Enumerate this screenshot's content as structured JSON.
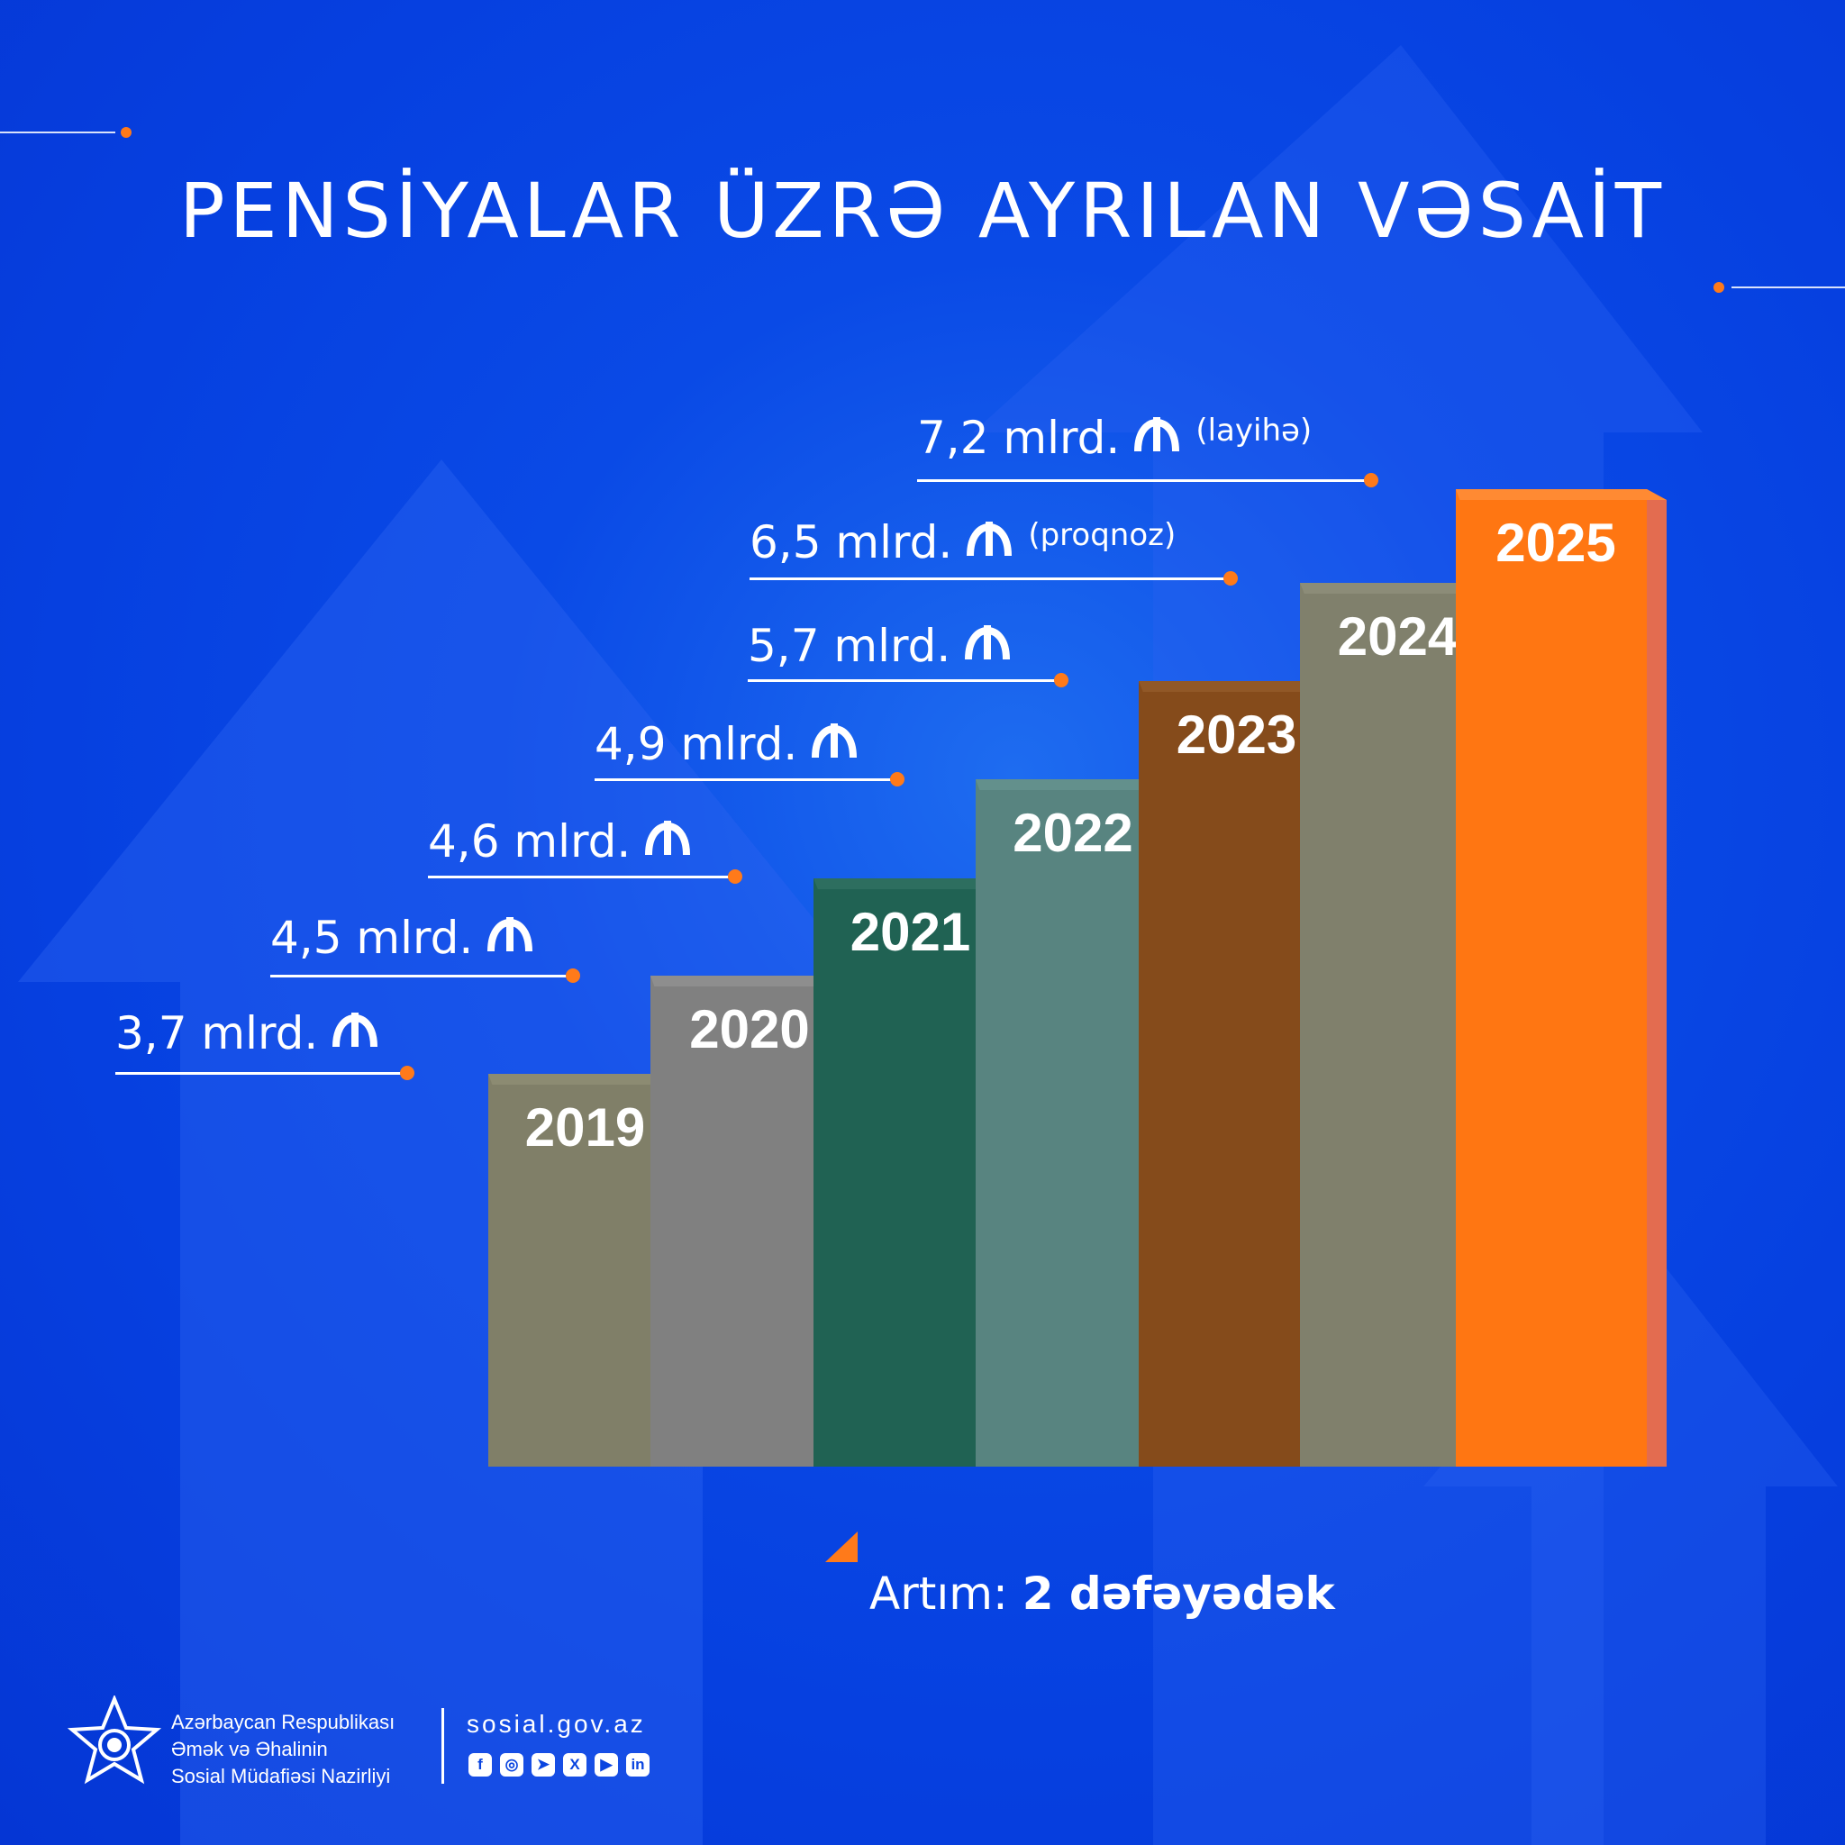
{
  "title": "PENSİYALAR ÜZRƏ AYRILAN VƏSAİT",
  "chart_data": {
    "type": "bar",
    "categories": [
      "2019",
      "2020",
      "2021",
      "2022",
      "2023",
      "2024",
      "2025"
    ],
    "values": [
      3.7,
      4.5,
      4.6,
      4.9,
      5.7,
      6.5,
      7.2
    ],
    "value_labels": [
      "3,7 mlrd.",
      "4,5 mlrd.",
      "4,6 mlrd.",
      "4,9 mlrd.",
      "5,7 mlrd.",
      "6,5 mlrd.",
      "7,2 mlrd."
    ],
    "notes": [
      "",
      "",
      "",
      "",
      "",
      "(proqnoz)",
      "(layihə)"
    ],
    "unit_icon": "manat-sign-icon",
    "colors": {
      "front": [
        "#807f68",
        "#808080",
        "#206253",
        "#588480",
        "#854b1b",
        "#80806c",
        "#ff7612"
      ],
      "side": [
        "#7f7e4f",
        "#5f8072",
        "#004a3c",
        "#2f7c72",
        "#8c5a3a",
        "#7a8450",
        "#e36c50"
      ],
      "top": [
        "#8c8b72",
        "#8e8e8e",
        "#2d6e5f",
        "#63908c",
        "#915827",
        "#8c8c78",
        "#ff8a33"
      ]
    },
    "leader_color": "#ffffff",
    "dot_color": "#ff7a1a"
  },
  "growth": {
    "label": "Artım:",
    "value": "2 dəfəyədək"
  },
  "footer": {
    "org_line1": "Azərbaycan Respublikası",
    "org_line2": "Əmək və Əhalinin",
    "org_line3": "Sosial Müdafiəsi Nazirliyi",
    "website": "sosial.gov.az",
    "social": [
      {
        "icon": "facebook-icon",
        "glyph": "f"
      },
      {
        "icon": "instagram-icon",
        "glyph": "◎"
      },
      {
        "icon": "telegram-icon",
        "glyph": "➤"
      },
      {
        "icon": "x-icon",
        "glyph": "X"
      },
      {
        "icon": "youtube-icon",
        "glyph": "▶"
      },
      {
        "icon": "linkedin-icon",
        "glyph": "in"
      }
    ]
  }
}
